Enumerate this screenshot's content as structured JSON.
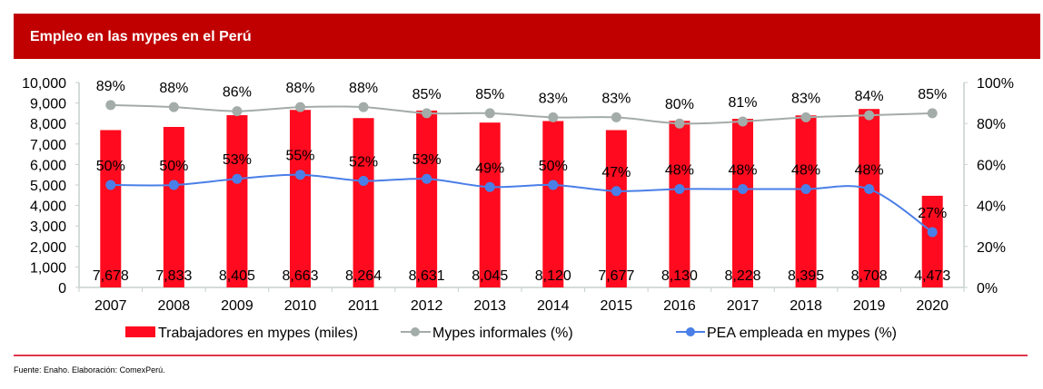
{
  "header": {
    "title": "Empleo en las mypes en el Perú"
  },
  "footer": {
    "source": "Fuente: Enaho. Elaboración: ComexPerú."
  },
  "colors": {
    "header_bg": "#c00000",
    "bars": "#ff0a1e",
    "informal_line": "#a3aca8",
    "pea_line": "#4a7fe8"
  },
  "chart_data": {
    "type": "bar",
    "title": "Empleo en las mypes en el Perú",
    "xlabel": "",
    "ylabel": "",
    "categories": [
      "2007",
      "2008",
      "2009",
      "2010",
      "2011",
      "2012",
      "2013",
      "2014",
      "2015",
      "2016",
      "2017",
      "2018",
      "2019",
      "2020"
    ],
    "ylim": [
      0,
      10000
    ],
    "y2lim": [
      0,
      100
    ],
    "y_ticks": [
      "0",
      "1,000",
      "2,000",
      "3,000",
      "4,000",
      "5,000",
      "6,000",
      "7,000",
      "8,000",
      "9,000",
      "10,000"
    ],
    "y2_ticks": [
      "0%",
      "20%",
      "40%",
      "60%",
      "80%",
      "100%"
    ],
    "grid": false,
    "legend_position": "bottom",
    "series": [
      {
        "name": "Trabajadores en mypes (miles)",
        "type": "bar",
        "axis": "left",
        "values": [
          7678,
          7833,
          8405,
          8663,
          8264,
          8631,
          8045,
          8120,
          7677,
          8130,
          8228,
          8395,
          8708,
          4473
        ],
        "labels": [
          "7,678",
          "7,833",
          "8,405",
          "8,663",
          "8,264",
          "8,631",
          "8,045",
          "8,120",
          "7,677",
          "8,130",
          "8,228",
          "8,395",
          "8,708",
          "4,473"
        ]
      },
      {
        "name": "Mypes informales (%)",
        "type": "line",
        "axis": "right",
        "values": [
          89,
          88,
          86,
          88,
          88,
          85,
          85,
          83,
          83,
          80,
          81,
          83,
          84,
          85
        ],
        "labels": [
          "89%",
          "88%",
          "86%",
          "88%",
          "88%",
          "85%",
          "85%",
          "83%",
          "83%",
          "80%",
          "81%",
          "83%",
          "84%",
          "85%"
        ]
      },
      {
        "name": "PEA empleada en mypes (%)",
        "type": "line",
        "axis": "right",
        "values": [
          50,
          50,
          53,
          55,
          52,
          53,
          49,
          50,
          47,
          48,
          48,
          48,
          48,
          27
        ],
        "labels": [
          "50%",
          "50%",
          "53%",
          "55%",
          "52%",
          "53%",
          "49%",
          "50%",
          "47%",
          "48%",
          "48%",
          "48%",
          "48%",
          "27%"
        ]
      }
    ]
  }
}
